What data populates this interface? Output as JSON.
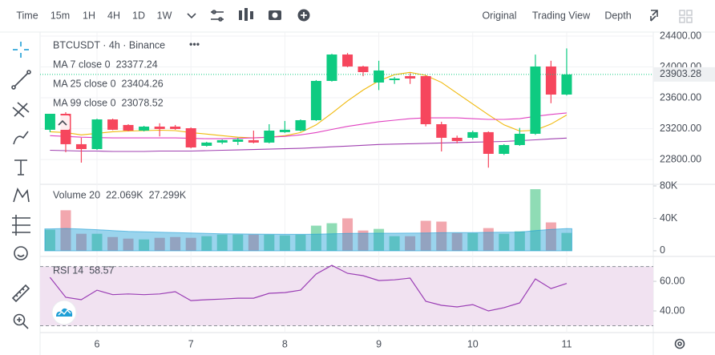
{
  "toolbar": {
    "intervals": [
      "Time",
      "15m",
      "1H",
      "4H",
      "1D",
      "1W"
    ],
    "active_interval": 3,
    "views": [
      "Original",
      "Trading View",
      "Depth"
    ],
    "active_view": 1,
    "active_color": "#c99400"
  },
  "chart_data": [
    {
      "type": "candlestick",
      "title": "BTCUSDT · 4h · Binance",
      "x": [
        5.5,
        5.667,
        5.833,
        6,
        6.167,
        6.333,
        6.5,
        6.667,
        6.833,
        7,
        7.167,
        7.333,
        7.5,
        7.667,
        7.833,
        8,
        8.167,
        8.333,
        8.5,
        8.667,
        8.833,
        9,
        9.167,
        9.333,
        9.5,
        9.667,
        9.833,
        10,
        10.167,
        10.333,
        10.5,
        10.667,
        10.833,
        11
      ],
      "open": [
        23186,
        23393,
        22999,
        22936,
        23320,
        23248,
        23175,
        23227,
        23227,
        23206,
        22978,
        23020,
        23030,
        23051,
        23020,
        23155,
        23175,
        23310,
        23819,
        24161,
        24006,
        23798,
        23829,
        23881,
        23881,
        23258,
        23082,
        23082,
        23155,
        22874,
        22988,
        23134,
        24006,
        23642
      ],
      "high": [
        23393,
        23414,
        23082,
        23330,
        23330,
        23258,
        23237,
        23270,
        23248,
        23217,
        23030,
        23060,
        23082,
        23175,
        23258,
        23300,
        23320,
        23830,
        24170,
        24180,
        24016,
        24080,
        23870,
        23920,
        23890,
        23290,
        23110,
        23175,
        23165,
        23000,
        23210,
        24160,
        24080,
        24240
      ],
      "low": [
        23155,
        22895,
        22760,
        22925,
        23180,
        23165,
        23165,
        23100,
        23186,
        22946,
        22968,
        23000,
        22988,
        23010,
        23010,
        23145,
        23165,
        23300,
        23810,
        23996,
        23880,
        23700,
        23780,
        23780,
        23230,
        22905,
        23010,
        23060,
        22695,
        22860,
        22978,
        23120,
        23530,
        23630
      ],
      "close": [
        23393,
        22999,
        22936,
        23320,
        23186,
        23175,
        23227,
        23196,
        23196,
        22957,
        23020,
        23051,
        23061,
        23020,
        23175,
        23186,
        23310,
        23819,
        24161,
        24006,
        23933,
        23954,
        23850,
        23850,
        23258,
        23082,
        23040,
        23155,
        22874,
        22988,
        23134,
        24006,
        23642,
        23903.28
      ],
      "close_labels": [
        null,
        null,
        null,
        null,
        null,
        null,
        null,
        null,
        null,
        null,
        null,
        null,
        null,
        null,
        null,
        null,
        null,
        null,
        null,
        null,
        null,
        null,
        null,
        null,
        null,
        null,
        null,
        null,
        null,
        null,
        null,
        null,
        null,
        "23903.28"
      ],
      "up_color": "#0ecb81",
      "down_color": "#f6465d",
      "series": [
        {
          "name": "MA 7 close 0",
          "color": "#f0b90b",
          "values": [
            23160,
            23150,
            23120,
            23140,
            23160,
            23170,
            23175,
            23180,
            23175,
            23150,
            23130,
            23110,
            23090,
            23080,
            23090,
            23110,
            23150,
            23250,
            23400,
            23560,
            23700,
            23820,
            23900,
            23930,
            23890,
            23800,
            23660,
            23520,
            23380,
            23250,
            23170,
            23180,
            23260,
            23377.24
          ]
        },
        {
          "name": "MA 25 close 0",
          "color": "#e040c0",
          "values": [
            23110,
            23100,
            23090,
            23085,
            23080,
            23080,
            23080,
            23080,
            23080,
            23075,
            23070,
            23070,
            23075,
            23080,
            23090,
            23100,
            23120,
            23150,
            23190,
            23230,
            23260,
            23290,
            23310,
            23330,
            23340,
            23340,
            23340,
            23330,
            23320,
            23320,
            23330,
            23360,
            23385,
            23404.26
          ]
        },
        {
          "name": "MA 99 close 0",
          "color": "#a040b0",
          "values": [
            22920,
            22915,
            22910,
            22910,
            22905,
            22905,
            22905,
            22910,
            22910,
            22910,
            22915,
            22920,
            22925,
            22930,
            22935,
            22940,
            22945,
            22955,
            22965,
            22975,
            22985,
            22995,
            23000,
            23005,
            23010,
            23015,
            23020,
            23025,
            23030,
            23035,
            23045,
            23055,
            23068,
            23078.52
          ]
        }
      ],
      "xlim": [
        5.394,
        11.922
      ],
      "ylim": [
        22500,
        24452
      ],
      "yticks": [
        {
          "value": 24400,
          "label": "24400.00"
        },
        {
          "value": 24000,
          "label": "24000.00"
        },
        {
          "value": 23600,
          "label": "23600.00"
        },
        {
          "value": 23200,
          "label": "23200.00"
        },
        {
          "value": 22800,
          "label": "22800.00"
        }
      ],
      "grid": true
    },
    {
      "type": "bar",
      "title": "Volume 20",
      "series": [
        {
          "color": "#0ecb81",
          "up_color": "#8fdcb5",
          "down_color": "#f2a7ae",
          "values": [
            26000,
            50000,
            21000,
            21000,
            17000,
            15000,
            14000,
            16000,
            17000,
            16000,
            18000,
            20000,
            20000,
            20000,
            20000,
            19000,
            20000,
            31000,
            34000,
            40000,
            25000,
            27000,
            18000,
            18000,
            37000,
            36000,
            22000,
            22000,
            28000,
            21000,
            24000,
            76000,
            35000,
            22069
          ],
          "value_labels": [
            null,
            null,
            null,
            null,
            null,
            null,
            null,
            null,
            null,
            null,
            null,
            null,
            null,
            null,
            null,
            null,
            null,
            null,
            null,
            null,
            null,
            null,
            null,
            null,
            null,
            null,
            null,
            null,
            null,
            null,
            null,
            null,
            null,
            "22.069K"
          ]
        },
        {
          "color": "#1e9fd6",
          "values": [
            27000,
            27500,
            26800,
            26000,
            25000,
            24000,
            23500,
            23000,
            22500,
            22000,
            21500,
            21000,
            20800,
            20600,
            20400,
            20300,
            20300,
            20500,
            21000,
            21500,
            21600,
            21700,
            21700,
            21800,
            22000,
            22300,
            22400,
            22500,
            22700,
            22900,
            23100,
            25000,
            26300,
            27299
          ],
          "value_labels": [
            null,
            null,
            null,
            null,
            null,
            null,
            null,
            null,
            null,
            null,
            null,
            null,
            null,
            null,
            null,
            null,
            null,
            null,
            null,
            null,
            null,
            null,
            null,
            null,
            null,
            null,
            null,
            null,
            null,
            null,
            null,
            null,
            null,
            "27.299K"
          ]
        }
      ],
      "ylim": [
        -5000,
        82000
      ],
      "yticks": [
        {
          "value": 80000,
          "label": "80K"
        },
        {
          "value": 40000,
          "label": "40K"
        },
        0
      ]
    },
    {
      "type": "line",
      "title": "RSI 14",
      "series": [
        {
          "color": "#9b3fb5",
          "values": [
            62.7,
            49.2,
            47.6,
            54,
            51,
            51.5,
            51,
            51.5,
            53,
            47,
            47.6,
            48,
            48.6,
            48.6,
            51.9,
            52.4,
            54,
            64.9,
            70.8,
            65.4,
            63.8,
            60.5,
            61,
            62.2,
            46.5,
            43.8,
            42.7,
            44.3,
            40,
            42.2,
            45.4,
            61.6,
            55.1,
            58.57
          ]
        }
      ],
      "band": [
        30,
        70
      ],
      "band_color": "#f1e2f1",
      "ylim": [
        25.4,
        76.8
      ],
      "yticks": [
        {
          "value": 60,
          "label": "60.00"
        },
        {
          "value": 40,
          "label": "40.00"
        }
      ],
      "xticks": [
        6,
        7,
        8,
        9,
        10,
        11
      ]
    }
  ]
}
